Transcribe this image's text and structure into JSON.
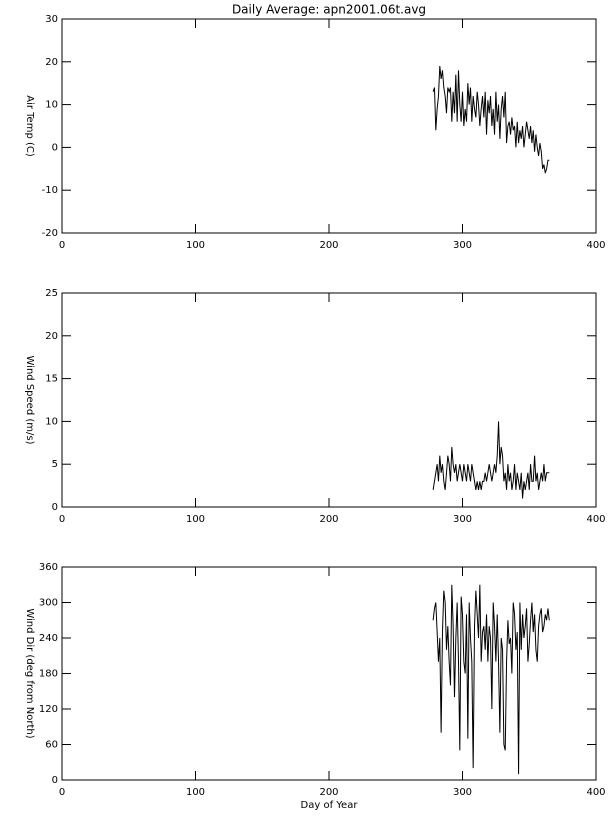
{
  "chart_data": [
    {
      "type": "line",
      "title": "Daily Average: apn2001.06t.avg",
      "ylabel": "Air Temp (C)",
      "x": [
        278,
        279,
        280,
        281,
        282,
        283,
        284,
        285,
        286,
        287,
        288,
        289,
        290,
        291,
        292,
        293,
        294,
        295,
        296,
        297,
        298,
        299,
        300,
        301,
        302,
        303,
        304,
        305,
        306,
        307,
        308,
        309,
        310,
        311,
        312,
        313,
        314,
        315,
        316,
        317,
        318,
        319,
        320,
        321,
        322,
        323,
        324,
        325,
        326,
        327,
        328,
        329,
        330,
        331,
        332,
        333,
        334,
        335,
        336,
        337,
        338,
        339,
        340,
        341,
        342,
        343,
        344,
        345,
        346,
        347,
        348,
        349,
        350,
        351,
        352,
        353,
        354,
        355,
        356,
        357,
        358,
        359,
        360,
        361,
        362,
        363,
        364,
        365
      ],
      "values": [
        13,
        14,
        4,
        9,
        12,
        19,
        16,
        18,
        14,
        12,
        8,
        14,
        13,
        14,
        6,
        13,
        8,
        17,
        6,
        18,
        10,
        6,
        13,
        5,
        9,
        6,
        15,
        10,
        14,
        6,
        12,
        9,
        7,
        13,
        10,
        5,
        9,
        12,
        7,
        13,
        3,
        11,
        8,
        12,
        5,
        9,
        3,
        13,
        6,
        10,
        2,
        9,
        12,
        7,
        13,
        1,
        5,
        6,
        3,
        7,
        4,
        5,
        0,
        6,
        1,
        4,
        2,
        5,
        0,
        3,
        6,
        4,
        2,
        5,
        1,
        4,
        -1,
        3,
        0,
        -2,
        1,
        -1,
        -5,
        -4,
        -6,
        -5,
        -3,
        -3
      ],
      "color": "#000000",
      "xlim": [
        0,
        400
      ],
      "xticks": [
        0,
        100,
        200,
        300,
        400
      ],
      "ylim": [
        -20,
        30
      ],
      "yticks": [
        -20,
        -10,
        0,
        10,
        20,
        30
      ]
    },
    {
      "type": "line",
      "ylabel": "Wind Speed (m/s)",
      "x": [
        278,
        279,
        280,
        281,
        282,
        283,
        284,
        285,
        286,
        287,
        288,
        289,
        290,
        291,
        292,
        293,
        294,
        295,
        296,
        297,
        298,
        299,
        300,
        301,
        302,
        303,
        304,
        305,
        306,
        307,
        308,
        309,
        310,
        311,
        312,
        313,
        314,
        315,
        316,
        317,
        318,
        319,
        320,
        321,
        322,
        323,
        324,
        325,
        326,
        327,
        328,
        329,
        330,
        331,
        332,
        333,
        334,
        335,
        336,
        337,
        338,
        339,
        340,
        341,
        342,
        343,
        344,
        345,
        346,
        347,
        348,
        349,
        350,
        351,
        352,
        353,
        354,
        355,
        356,
        357,
        358,
        359,
        360,
        361,
        362,
        363,
        364,
        365
      ],
      "values": [
        2,
        3,
        4,
        5,
        3,
        6,
        4,
        5,
        3,
        2,
        4,
        6,
        5,
        3,
        7,
        5,
        4,
        5,
        3,
        4,
        5,
        4,
        3,
        5,
        4,
        3,
        5,
        4,
        3,
        5,
        4,
        3,
        2,
        3,
        2,
        3,
        2,
        3,
        3,
        4,
        3,
        4,
        5,
        4,
        3,
        4,
        5,
        4,
        6,
        10,
        5,
        7,
        6,
        3,
        4,
        2,
        5,
        3,
        4,
        2,
        3,
        5,
        2,
        4,
        3,
        2,
        4,
        1,
        3,
        2,
        3,
        4,
        2,
        5,
        3,
        3,
        6,
        3,
        4,
        2,
        3,
        4,
        3,
        5,
        3,
        4,
        4,
        4
      ],
      "color": "#000000",
      "xlim": [
        0,
        400
      ],
      "xticks": [
        0,
        100,
        200,
        300,
        400
      ],
      "ylim": [
        0,
        25
      ],
      "yticks": [
        0,
        5,
        10,
        15,
        20,
        25
      ]
    },
    {
      "type": "line",
      "ylabel": "Wind Dir (deg from North)",
      "xlabel": "Day of Year",
      "x": [
        278,
        279,
        280,
        281,
        282,
        283,
        284,
        285,
        286,
        287,
        288,
        289,
        290,
        291,
        292,
        293,
        294,
        295,
        296,
        297,
        298,
        299,
        300,
        301,
        302,
        303,
        304,
        305,
        306,
        307,
        308,
        309,
        310,
        311,
        312,
        313,
        314,
        315,
        316,
        317,
        318,
        319,
        320,
        321,
        322,
        323,
        324,
        325,
        326,
        327,
        328,
        329,
        330,
        331,
        332,
        333,
        334,
        335,
        336,
        337,
        338,
        339,
        340,
        341,
        342,
        343,
        344,
        345,
        346,
        347,
        348,
        349,
        350,
        351,
        352,
        353,
        354,
        355,
        356,
        357,
        358,
        359,
        360,
        361,
        362,
        363,
        364,
        365
      ],
      "values": [
        270,
        290,
        300,
        250,
        200,
        240,
        80,
        250,
        320,
        300,
        220,
        260,
        200,
        160,
        330,
        260,
        140,
        240,
        300,
        200,
        50,
        310,
        280,
        200,
        180,
        280,
        70,
        300,
        240,
        200,
        20,
        260,
        320,
        280,
        240,
        330,
        200,
        250,
        260,
        220,
        280,
        200,
        260,
        240,
        120,
        300,
        260,
        200,
        280,
        200,
        80,
        240,
        220,
        60,
        50,
        200,
        270,
        230,
        240,
        180,
        300,
        280,
        220,
        250,
        10,
        300,
        220,
        280,
        240,
        260,
        290,
        200,
        230,
        270,
        300,
        250,
        280,
        220,
        200,
        260,
        280,
        290,
        250,
        260,
        280,
        270,
        290,
        270
      ],
      "color": "#000000",
      "xlim": [
        0,
        400
      ],
      "xticks": [
        0,
        100,
        200,
        300,
        400
      ],
      "ylim": [
        0,
        360
      ],
      "yticks": [
        0,
        60,
        120,
        180,
        240,
        300,
        360
      ]
    }
  ]
}
